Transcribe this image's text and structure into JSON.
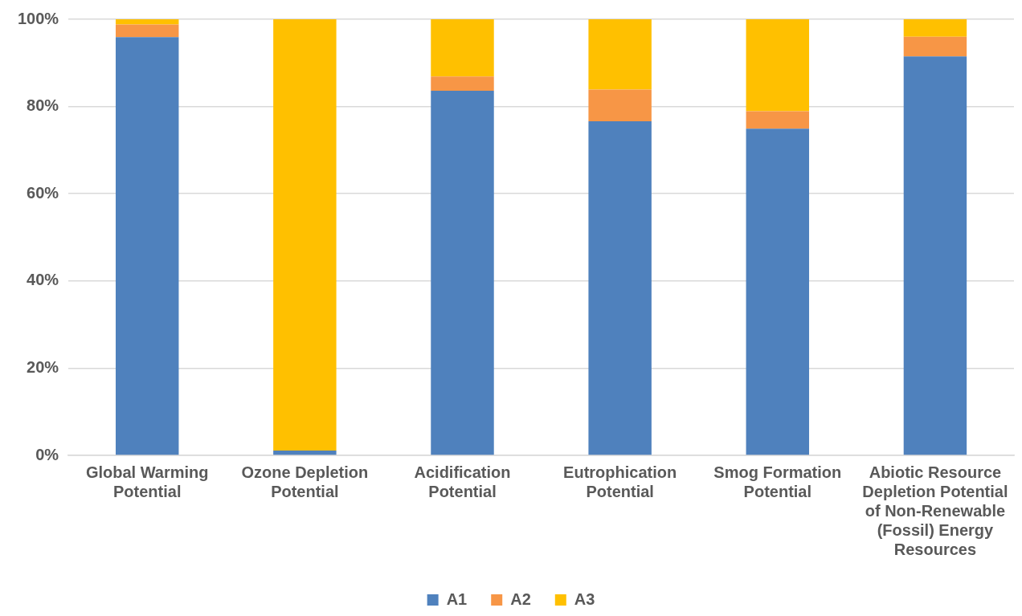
{
  "chart_data": {
    "type": "bar",
    "stacked": true,
    "categories": [
      "Global Warming Potential",
      "Ozone Depletion Potential",
      "Acidification Potential",
      "Eutrophication Potential",
      "Smog Formation Potential",
      "Abiotic Resource Depletion Potential of Non-Renewable (Fossil) Energy Resources"
    ],
    "series": [
      {
        "name": "A1",
        "color": "#4f81bd",
        "values": [
          95.9,
          1.1,
          83.6,
          76.6,
          74.9,
          91.5
        ]
      },
      {
        "name": "A2",
        "color": "#f79646",
        "values": [
          2.9,
          0,
          3.3,
          7.3,
          4.0,
          4.5
        ]
      },
      {
        "name": "A3",
        "color": "#ffc000",
        "values": [
          1.2,
          98.9,
          13.1,
          16.1,
          21.1,
          4.0
        ]
      }
    ],
    "ylim": [
      0,
      100
    ],
    "yticks": [
      {
        "value": 0,
        "label": "0%"
      },
      {
        "value": 20,
        "label": "20%"
      },
      {
        "value": 40,
        "label": "40%"
      },
      {
        "value": 60,
        "label": "60%"
      },
      {
        "value": 80,
        "label": "80%"
      },
      {
        "value": 100,
        "label": "100%"
      }
    ],
    "grid": "y",
    "legend": "bottom"
  }
}
